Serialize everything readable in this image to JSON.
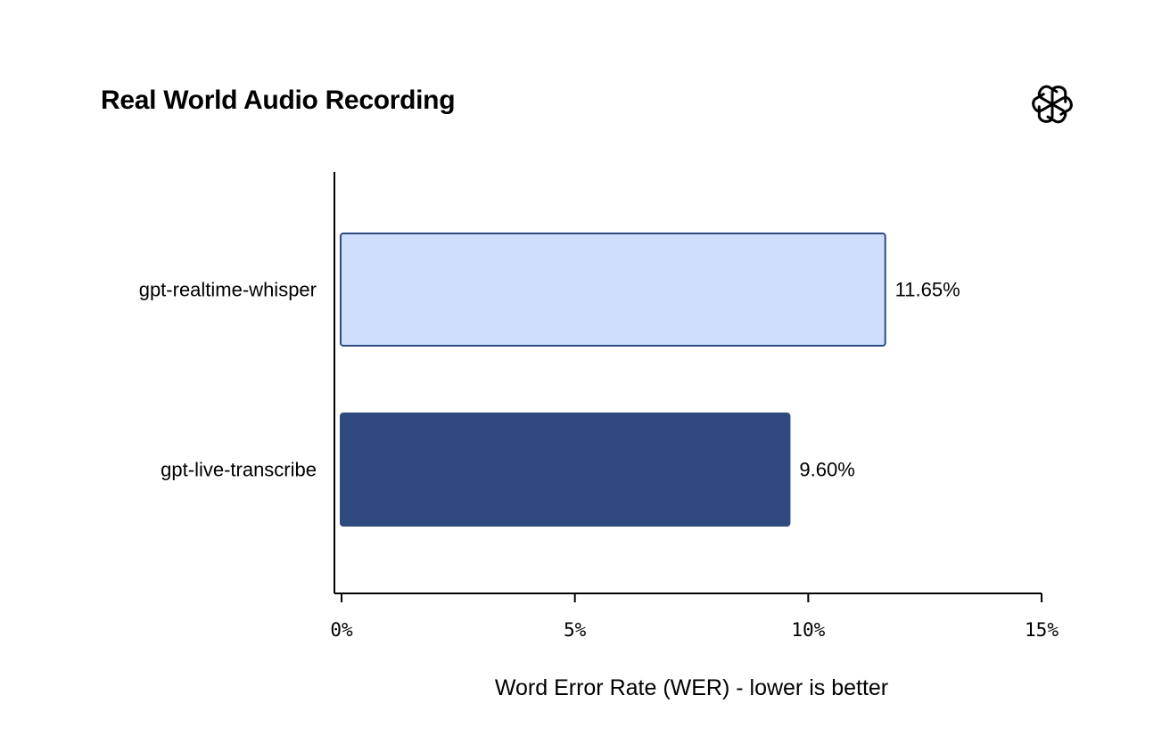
{
  "chart_data": {
    "type": "bar",
    "orientation": "horizontal",
    "title": "Real World Audio Recording",
    "xlabel": "Word Error Rate (WER) - lower is better",
    "ylabel": "",
    "xlim": [
      0,
      15
    ],
    "x_ticks": [
      0,
      5,
      10,
      15
    ],
    "x_tick_labels": [
      "0%",
      "5%",
      "10%",
      "15%"
    ],
    "categories": [
      "gpt-realtime-whisper",
      "gpt-live-transcribe"
    ],
    "values": [
      11.65,
      9.6
    ],
    "value_labels": [
      "11.65%",
      "9.60%"
    ],
    "bar_colors": [
      "#cfdffb",
      "#2e4a7e"
    ],
    "bar_edge_color": "#2e4a7e",
    "grid": false,
    "legend": "none",
    "logo": "openai-logo-icon"
  }
}
